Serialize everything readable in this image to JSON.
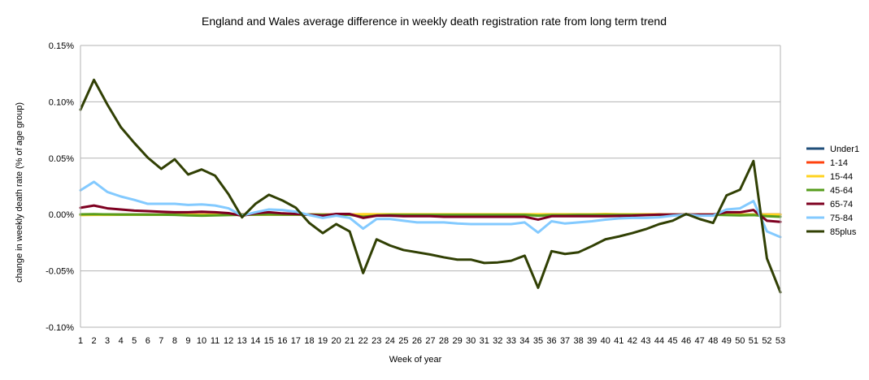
{
  "chart_data": {
    "type": "line",
    "title": "England and Wales average difference in weekly death registration rate from long term trend",
    "xlabel": "Week of year",
    "ylabel": "change in weekly death rate (% of age group)",
    "ylim": [
      -0.1,
      0.15
    ],
    "yticks": [
      0.15,
      0.1,
      0.05,
      0.0,
      -0.05,
      -0.1
    ],
    "ytick_labels": [
      "0.15%",
      "0.10%",
      "0.05%",
      "0.00%",
      "-0.05%",
      "-0.10%"
    ],
    "categories": [
      "1",
      "2",
      "3",
      "4",
      "5",
      "6",
      "7",
      "8",
      "9",
      "10",
      "11",
      "12",
      "13",
      "14",
      "15",
      "16",
      "17",
      "18",
      "19",
      "20",
      "21",
      "22",
      "23",
      "24",
      "25",
      "26",
      "27",
      "28",
      "29",
      "30",
      "31",
      "32",
      "33",
      "34",
      "35",
      "36",
      "37",
      "38",
      "39",
      "40",
      "41",
      "42",
      "43",
      "44",
      "45",
      "46",
      "47",
      "48",
      "49",
      "50",
      "51",
      "52",
      "53"
    ],
    "grid": "horizontal",
    "legend_position": "right",
    "series": [
      {
        "name": "Under1",
        "color": "#1f4e79",
        "values": [
          0.0,
          0.0,
          0.0,
          0.0,
          0.0,
          0.0,
          0.0,
          0.0,
          0.0,
          0.0,
          0.0,
          0.0,
          0.0,
          0.0,
          0.0,
          0.0,
          0.0,
          0.0,
          0.0,
          0.0,
          0.0,
          0.0,
          0.0,
          0.0,
          0.0,
          0.0,
          0.0,
          0.0,
          0.0,
          0.0,
          0.0,
          0.0,
          0.0,
          0.0,
          0.0,
          0.0,
          0.0,
          0.0,
          0.0,
          0.0,
          0.0,
          0.0,
          0.0,
          0.0,
          0.0,
          0.0,
          0.0,
          0.0,
          0.0,
          0.0,
          0.0,
          0.0,
          0.0
        ]
      },
      {
        "name": "1-14",
        "color": "#ff420e",
        "values": [
          0.0,
          0.0,
          0.0,
          0.0,
          0.0,
          0.0,
          0.0,
          0.0,
          0.0,
          0.0,
          0.0,
          0.0,
          0.0,
          0.0,
          0.0,
          0.0,
          0.0,
          0.0,
          0.0,
          0.0,
          0.0,
          0.0,
          0.0,
          0.0,
          0.0,
          0.0,
          0.0,
          0.0,
          0.0,
          0.0,
          0.0,
          0.0,
          0.0,
          0.0,
          0.0,
          0.0,
          0.0,
          0.0,
          0.0,
          0.0,
          0.0,
          0.0,
          0.0,
          0.0,
          0.0,
          0.0,
          0.0,
          0.0,
          0.0,
          0.0,
          0.0,
          0.0,
          0.0
        ]
      },
      {
        "name": "15-44",
        "color": "#ffd320",
        "values": [
          -0.0005,
          -0.0003,
          -0.0003,
          -0.0002,
          -0.0002,
          -0.0002,
          -0.0002,
          -0.0002,
          -0.0002,
          -0.0002,
          -0.0002,
          -0.0002,
          -0.0002,
          0.0,
          0.0,
          0.0,
          0.0,
          0.0,
          0.0,
          0.0,
          0.0,
          0.0003,
          0.0002,
          0.0002,
          0.0002,
          0.0002,
          0.0002,
          0.0002,
          0.0002,
          0.0002,
          0.0002,
          0.0002,
          0.0002,
          0.0002,
          0.0002,
          0.0002,
          0.0002,
          0.0002,
          0.0002,
          0.0005,
          0.0002,
          0.0002,
          0.0002,
          0.0002,
          0.0,
          0.0,
          0.0,
          0.0,
          0.0,
          0.0,
          0.0,
          0.0,
          0.0
        ]
      },
      {
        "name": "45-64",
        "color": "#579d1c",
        "values": [
          0.0001,
          0.0003,
          0.0001,
          0.0,
          0.0,
          -0.0001,
          -0.0001,
          -0.0003,
          -0.0008,
          -0.001,
          -0.0008,
          -0.0005,
          -0.0002,
          0.0,
          0.0001,
          0.0,
          0.0,
          0.0,
          -0.0002,
          -0.0002,
          -0.0002,
          -0.002,
          -0.0008,
          -0.0003,
          -0.0003,
          -0.0003,
          -0.0003,
          -0.0003,
          -0.0003,
          -0.0003,
          -0.0003,
          -0.0003,
          -0.0003,
          -0.0003,
          -0.001,
          -0.0005,
          -0.0005,
          -0.0003,
          -0.0003,
          -0.0003,
          -0.0003,
          -0.0003,
          -0.0003,
          -0.0003,
          -0.0002,
          0.0,
          -0.0002,
          -0.0002,
          -0.0005,
          -0.0008,
          -0.0005,
          -0.0015,
          -0.002
        ]
      },
      {
        "name": "65-74",
        "color": "#7e0021",
        "values": [
          0.006,
          0.008,
          0.0055,
          0.0045,
          0.0035,
          0.003,
          0.0025,
          0.002,
          0.002,
          0.0025,
          0.002,
          0.0012,
          -0.001,
          0.001,
          0.002,
          0.001,
          0.0005,
          -0.0002,
          -0.001,
          0.0005,
          0.0005,
          -0.003,
          -0.001,
          -0.001,
          -0.0015,
          -0.0015,
          -0.0015,
          -0.002,
          -0.002,
          -0.002,
          -0.002,
          -0.002,
          -0.002,
          -0.002,
          -0.0045,
          -0.0015,
          -0.0015,
          -0.0015,
          -0.0015,
          -0.0015,
          -0.0012,
          -0.001,
          -0.0005,
          0.0,
          0.0,
          0.0,
          0.0,
          0.0,
          0.002,
          0.002,
          0.004,
          -0.0055,
          -0.0065
        ]
      },
      {
        "name": "75-84",
        "color": "#83caff",
        "values": [
          0.0215,
          0.029,
          0.02,
          0.016,
          0.013,
          0.0095,
          0.0095,
          0.0095,
          0.0085,
          0.009,
          0.008,
          0.0055,
          -0.001,
          0.002,
          0.0045,
          0.004,
          0.0025,
          -0.0005,
          -0.003,
          -0.001,
          -0.003,
          -0.0125,
          -0.004,
          -0.004,
          -0.0055,
          -0.007,
          -0.007,
          -0.007,
          -0.008,
          -0.0085,
          -0.0085,
          -0.0085,
          -0.0085,
          -0.007,
          -0.016,
          -0.006,
          -0.008,
          -0.007,
          -0.006,
          -0.0045,
          -0.0035,
          -0.003,
          -0.003,
          -0.0025,
          -0.001,
          0.0,
          -0.001,
          -0.001,
          0.0045,
          0.0055,
          0.012,
          -0.015,
          -0.02
        ]
      },
      {
        "name": "85plus",
        "color": "#314004",
        "values": [
          0.093,
          0.1195,
          0.0975,
          0.0775,
          0.0635,
          0.0505,
          0.0405,
          0.049,
          0.0355,
          0.04,
          0.0345,
          0.018,
          -0.0025,
          0.0095,
          0.0175,
          0.0125,
          0.006,
          -0.0075,
          -0.0165,
          -0.0085,
          -0.015,
          -0.052,
          -0.022,
          -0.0275,
          -0.0315,
          -0.0335,
          -0.0355,
          -0.038,
          -0.04,
          -0.04,
          -0.043,
          -0.0425,
          -0.041,
          -0.0365,
          -0.065,
          -0.0325,
          -0.035,
          -0.0335,
          -0.028,
          -0.022,
          -0.0195,
          -0.0165,
          -0.013,
          -0.0085,
          -0.0055,
          0.0005,
          -0.004,
          -0.0075,
          0.017,
          0.022,
          0.0475,
          -0.039,
          -0.069
        ]
      }
    ]
  }
}
